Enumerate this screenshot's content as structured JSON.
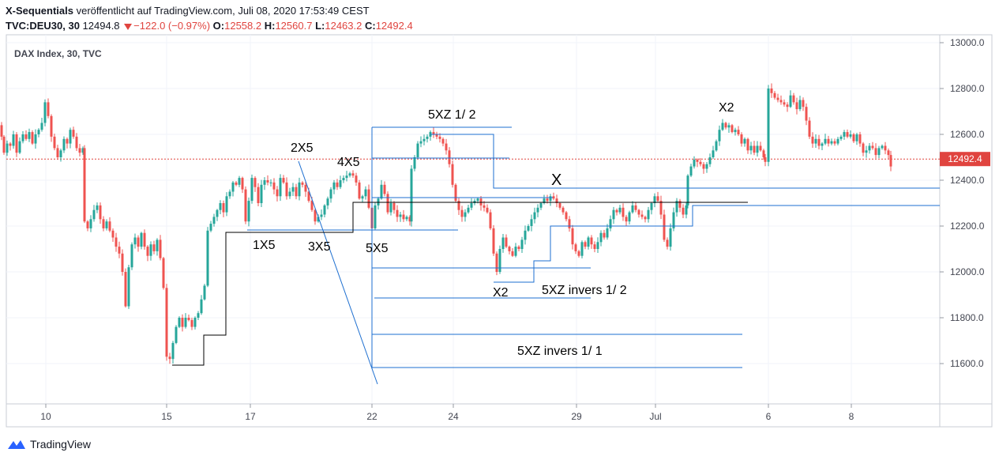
{
  "header": {
    "author": "X-Sequentials",
    "published": "veröffentlicht auf TradingView.com, Juli 08, 2020 17:53:49 CEST",
    "symbol": "TVC:DEU30, 30",
    "last": "12494.8",
    "change": "−122.0 (−0.97%)",
    "o_label": "O:",
    "o_value": "12558.2",
    "h_label": "H:",
    "h_value": "12560.7",
    "l_label": "L:",
    "l_value": "12463.2",
    "c_label": "C:",
    "c_value": "12492.4"
  },
  "branding": {
    "logo_text": "TradingView"
  },
  "colors": {
    "up": "#26a69a",
    "down": "#ef5350",
    "price_line": "#e0443f",
    "drawing_blue": "#1e6fd0",
    "step_black": "#000000"
  },
  "chart_data": {
    "type": "candlestick",
    "title": "DAX Index, 30, TVC",
    "ylim": [
      11420,
      13040
    ],
    "y_ticks": [
      "13000.0",
      "12800.0",
      "12600.0",
      "12400.0",
      "12200.0",
      "12000.0",
      "11800.0",
      "11600.0"
    ],
    "x_ticks": [
      "10",
      "15",
      "17",
      "22",
      "24",
      "29",
      "Jul",
      "6",
      "8"
    ],
    "current_price": "12492.4",
    "price_series": [
      [
        0,
        12640
      ],
      [
        3,
        12590
      ],
      [
        6,
        12520
      ],
      [
        10,
        12560
      ],
      [
        14,
        12550
      ],
      [
        18,
        12600
      ],
      [
        22,
        12520
      ],
      [
        26,
        12570
      ],
      [
        30,
        12600
      ],
      [
        34,
        12580
      ],
      [
        38,
        12610
      ],
      [
        42,
        12560
      ],
      [
        46,
        12600
      ],
      [
        50,
        12620
      ],
      [
        54,
        12650
      ],
      [
        58,
        12740
      ],
      [
        62,
        12680
      ],
      [
        66,
        12590
      ],
      [
        70,
        12540
      ],
      [
        74,
        12500
      ],
      [
        78,
        12530
      ],
      [
        82,
        12580
      ],
      [
        86,
        12560
      ],
      [
        90,
        12620
      ],
      [
        94,
        12590
      ],
      [
        98,
        12540
      ],
      [
        102,
        12520
      ],
      [
        106,
        12540
      ],
      [
        108,
        12220
      ],
      [
        112,
        12190
      ],
      [
        116,
        12230
      ],
      [
        120,
        12270
      ],
      [
        124,
        12290
      ],
      [
        128,
        12230
      ],
      [
        132,
        12190
      ],
      [
        136,
        12220
      ],
      [
        140,
        12180
      ],
      [
        144,
        12150
      ],
      [
        148,
        12110
      ],
      [
        152,
        12080
      ],
      [
        156,
        12000
      ],
      [
        160,
        11850
      ],
      [
        164,
        12020
      ],
      [
        168,
        12120
      ],
      [
        172,
        12150
      ],
      [
        176,
        12110
      ],
      [
        180,
        12170
      ],
      [
        184,
        12110
      ],
      [
        188,
        12070
      ],
      [
        192,
        12120
      ],
      [
        196,
        12090
      ],
      [
        200,
        12140
      ],
      [
        204,
        12060
      ],
      [
        208,
        11930
      ],
      [
        212,
        11630
      ],
      [
        216,
        11620
      ],
      [
        220,
        11690
      ],
      [
        224,
        11760
      ],
      [
        228,
        11800
      ],
      [
        232,
        11760
      ],
      [
        236,
        11800
      ],
      [
        240,
        11790
      ],
      [
        244,
        11760
      ],
      [
        248,
        11800
      ],
      [
        252,
        11820
      ],
      [
        256,
        11880
      ],
      [
        260,
        11940
      ],
      [
        264,
        12180
      ],
      [
        268,
        12210
      ],
      [
        272,
        12240
      ],
      [
        276,
        12270
      ],
      [
        280,
        12300
      ],
      [
        284,
        12260
      ],
      [
        288,
        12330
      ],
      [
        292,
        12350
      ],
      [
        296,
        12390
      ],
      [
        300,
        12380
      ],
      [
        304,
        12410
      ],
      [
        308,
        12360
      ],
      [
        312,
        12220
      ],
      [
        316,
        12310
      ],
      [
        320,
        12410
      ],
      [
        324,
        12370
      ],
      [
        328,
        12300
      ],
      [
        332,
        12380
      ],
      [
        336,
        12400
      ],
      [
        340,
        12390
      ],
      [
        344,
        12390
      ],
      [
        348,
        12360
      ],
      [
        352,
        12330
      ],
      [
        356,
        12410
      ],
      [
        360,
        12390
      ],
      [
        364,
        12330
      ],
      [
        368,
        12350
      ],
      [
        372,
        12370
      ],
      [
        376,
        12330
      ],
      [
        380,
        12390
      ],
      [
        384,
        12380
      ],
      [
        388,
        12350
      ],
      [
        392,
        12310
      ],
      [
        396,
        12270
      ],
      [
        400,
        12220
      ],
      [
        404,
        12240
      ],
      [
        408,
        12250
      ],
      [
        412,
        12290
      ],
      [
        416,
        12320
      ],
      [
        420,
        12360
      ],
      [
        424,
        12390
      ],
      [
        428,
        12370
      ],
      [
        432,
        12400
      ],
      [
        436,
        12410
      ],
      [
        440,
        12420
      ],
      [
        444,
        12430
      ],
      [
        448,
        12420
      ],
      [
        452,
        12390
      ],
      [
        456,
        12320
      ],
      [
        460,
        12330
      ],
      [
        464,
        12360
      ],
      [
        468,
        12280
      ],
      [
        472,
        12190
      ],
      [
        476,
        12290
      ],
      [
        480,
        12320
      ],
      [
        484,
        12380
      ],
      [
        488,
        12340
      ],
      [
        492,
        12260
      ],
      [
        496,
        12300
      ],
      [
        500,
        12270
      ],
      [
        504,
        12240
      ],
      [
        508,
        12250
      ],
      [
        512,
        12230
      ],
      [
        516,
        12240
      ],
      [
        520,
        12220
      ],
      [
        522,
        12450
      ],
      [
        526,
        12500
      ],
      [
        530,
        12560
      ],
      [
        534,
        12570
      ],
      [
        538,
        12580
      ],
      [
        542,
        12590
      ],
      [
        546,
        12610
      ],
      [
        550,
        12600
      ],
      [
        554,
        12590
      ],
      [
        558,
        12580
      ],
      [
        562,
        12560
      ],
      [
        566,
        12530
      ],
      [
        570,
        12470
      ],
      [
        574,
        12380
      ],
      [
        578,
        12310
      ],
      [
        582,
        12270
      ],
      [
        586,
        12240
      ],
      [
        590,
        12260
      ],
      [
        594,
        12280
      ],
      [
        598,
        12300
      ],
      [
        602,
        12310
      ],
      [
        606,
        12320
      ],
      [
        610,
        12290
      ],
      [
        614,
        12280
      ],
      [
        618,
        12260
      ],
      [
        622,
        12190
      ],
      [
        626,
        12080
      ],
      [
        630,
        12000
      ],
      [
        634,
        12100
      ],
      [
        638,
        12150
      ],
      [
        642,
        12110
      ],
      [
        646,
        12090
      ],
      [
        650,
        12070
      ],
      [
        654,
        12110
      ],
      [
        658,
        12100
      ],
      [
        662,
        12140
      ],
      [
        666,
        12180
      ],
      [
        670,
        12200
      ],
      [
        674,
        12230
      ],
      [
        678,
        12260
      ],
      [
        682,
        12280
      ],
      [
        686,
        12300
      ],
      [
        690,
        12320
      ],
      [
        694,
        12310
      ],
      [
        698,
        12330
      ],
      [
        702,
        12320
      ],
      [
        706,
        12300
      ],
      [
        710,
        12280
      ],
      [
        714,
        12260
      ],
      [
        718,
        12230
      ],
      [
        722,
        12190
      ],
      [
        726,
        12120
      ],
      [
        730,
        12090
      ],
      [
        734,
        12070
      ],
      [
        738,
        12130
      ],
      [
        742,
        12110
      ],
      [
        746,
        12150
      ],
      [
        750,
        12120
      ],
      [
        754,
        12100
      ],
      [
        758,
        12130
      ],
      [
        762,
        12170
      ],
      [
        766,
        12150
      ],
      [
        770,
        12190
      ],
      [
        774,
        12230
      ],
      [
        778,
        12270
      ],
      [
        782,
        12260
      ],
      [
        786,
        12280
      ],
      [
        790,
        12240
      ],
      [
        794,
        12220
      ],
      [
        798,
        12260
      ],
      [
        802,
        12290
      ],
      [
        806,
        12270
      ],
      [
        810,
        12250
      ],
      [
        814,
        12240
      ],
      [
        818,
        12230
      ],
      [
        822,
        12270
      ],
      [
        826,
        12300
      ],
      [
        830,
        12330
      ],
      [
        834,
        12310
      ],
      [
        838,
        12250
      ],
      [
        842,
        12140
      ],
      [
        846,
        12110
      ],
      [
        850,
        12190
      ],
      [
        854,
        12260
      ],
      [
        858,
        12310
      ],
      [
        862,
        12280
      ],
      [
        866,
        12250
      ],
      [
        870,
        12290
      ],
      [
        872,
        12420
      ],
      [
        876,
        12460
      ],
      [
        880,
        12490
      ],
      [
        884,
        12480
      ],
      [
        888,
        12470
      ],
      [
        892,
        12450
      ],
      [
        896,
        12470
      ],
      [
        900,
        12500
      ],
      [
        904,
        12530
      ],
      [
        908,
        12570
      ],
      [
        912,
        12620
      ],
      [
        916,
        12650
      ],
      [
        920,
        12630
      ],
      [
        924,
        12640
      ],
      [
        928,
        12610
      ],
      [
        932,
        12620
      ],
      [
        936,
        12600
      ],
      [
        940,
        12560
      ],
      [
        944,
        12580
      ],
      [
        948,
        12530
      ],
      [
        952,
        12550
      ],
      [
        956,
        12520
      ],
      [
        960,
        12550
      ],
      [
        964,
        12530
      ],
      [
        968,
        12500
      ],
      [
        970,
        12480
      ],
      [
        974,
        12800
      ],
      [
        978,
        12780
      ],
      [
        982,
        12760
      ],
      [
        986,
        12750
      ],
      [
        990,
        12740
      ],
      [
        994,
        12730
      ],
      [
        998,
        12720
      ],
      [
        1002,
        12770
      ],
      [
        1006,
        12740
      ],
      [
        1010,
        12710
      ],
      [
        1014,
        12750
      ],
      [
        1018,
        12720
      ],
      [
        1022,
        12660
      ],
      [
        1026,
        12590
      ],
      [
        1030,
        12560
      ],
      [
        1034,
        12580
      ],
      [
        1038,
        12550
      ],
      [
        1042,
        12560
      ],
      [
        1046,
        12580
      ],
      [
        1050,
        12560
      ],
      [
        1054,
        12570
      ],
      [
        1058,
        12560
      ],
      [
        1062,
        12580
      ],
      [
        1066,
        12590
      ],
      [
        1070,
        12610
      ],
      [
        1074,
        12590
      ],
      [
        1078,
        12600
      ],
      [
        1082,
        12570
      ],
      [
        1086,
        12600
      ],
      [
        1090,
        12560
      ],
      [
        1094,
        12520
      ],
      [
        1098,
        12530
      ],
      [
        1102,
        12550
      ],
      [
        1106,
        12540
      ],
      [
        1110,
        12510
      ],
      [
        1114,
        12540
      ],
      [
        1118,
        12550
      ],
      [
        1122,
        12530
      ],
      [
        1126,
        12510
      ],
      [
        1129,
        12460
      ]
    ]
  },
  "annotations": [
    {
      "text": "2X5"
    },
    {
      "text": "4X5"
    },
    {
      "text": "1X5"
    },
    {
      "text": "3X5"
    },
    {
      "text": "5X5"
    },
    {
      "text": "5XZ 1/ 2"
    },
    {
      "text": "X"
    },
    {
      "text": "X2"
    },
    {
      "text": "5XZ invers 1/ 2"
    },
    {
      "text": "5XZ invers 1/ 1"
    },
    {
      "text": "X2"
    }
  ]
}
